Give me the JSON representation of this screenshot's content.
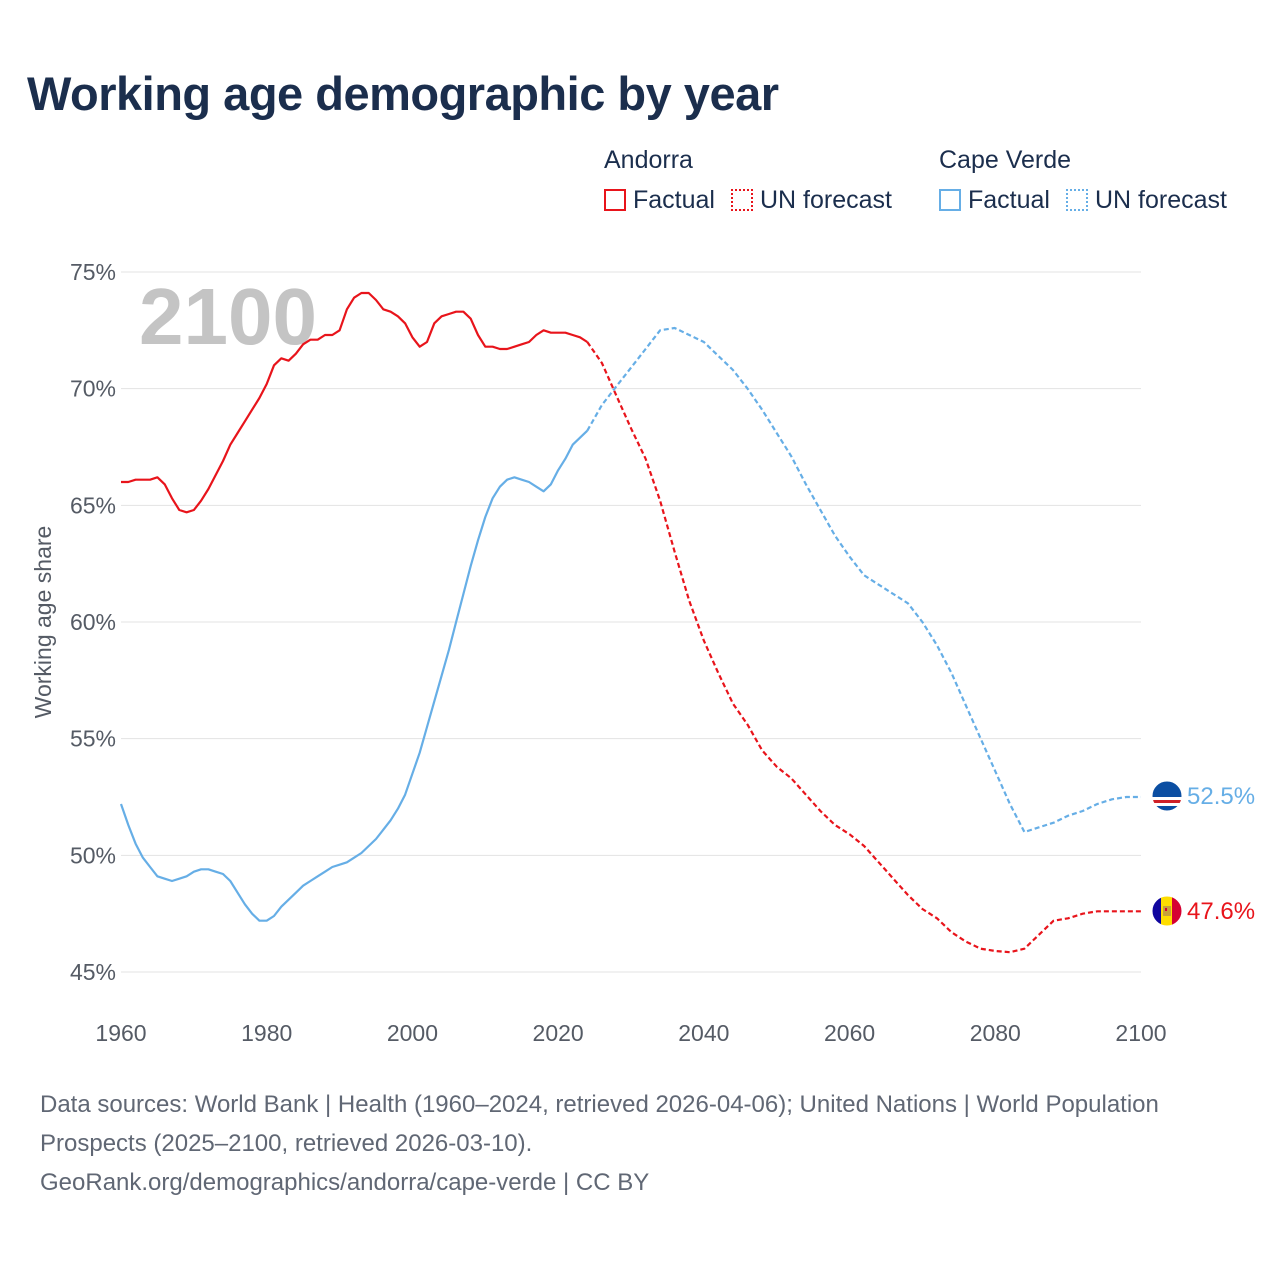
{
  "title": "Working age demographic by year",
  "legend": [
    {
      "country": "Andorra",
      "color": "#e8141b",
      "factual_label": "Factual",
      "forecast_label": "UN forecast"
    },
    {
      "country": "Cape Verde",
      "color": "#66aee6",
      "factual_label": "Factual",
      "forecast_label": "UN forecast"
    }
  ],
  "chart_data": {
    "type": "line",
    "title": "Working age demographic by year",
    "xlabel": "",
    "ylabel": "Working age share",
    "xlim": [
      1960,
      2100
    ],
    "ylim": [
      45,
      75
    ],
    "x_ticks": [
      1960,
      1980,
      2000,
      2020,
      2040,
      2060,
      2080,
      2100
    ],
    "y_ticks": [
      45,
      50,
      55,
      60,
      65,
      70,
      75
    ],
    "y_tick_labels": [
      "45%",
      "50%",
      "55%",
      "60%",
      "65%",
      "70%",
      "75%"
    ],
    "year_label": "2100",
    "factual_end": 2024,
    "series": [
      {
        "name": "Andorra",
        "color": "#e8141b",
        "end_label": "47.6%",
        "x": [
          1960,
          1961,
          1962,
          1963,
          1964,
          1965,
          1966,
          1967,
          1968,
          1969,
          1970,
          1971,
          1972,
          1973,
          1974,
          1975,
          1976,
          1977,
          1978,
          1979,
          1980,
          1981,
          1982,
          1983,
          1984,
          1985,
          1986,
          1987,
          1988,
          1989,
          1990,
          1991,
          1992,
          1993,
          1994,
          1995,
          1996,
          1997,
          1998,
          1999,
          2000,
          2001,
          2002,
          2003,
          2004,
          2005,
          2006,
          2007,
          2008,
          2009,
          2010,
          2011,
          2012,
          2013,
          2014,
          2015,
          2016,
          2017,
          2018,
          2019,
          2020,
          2021,
          2022,
          2023,
          2024,
          2026,
          2028,
          2030,
          2032,
          2034,
          2036,
          2038,
          2040,
          2042,
          2044,
          2046,
          2048,
          2050,
          2052,
          2054,
          2056,
          2058,
          2060,
          2062,
          2064,
          2066,
          2068,
          2070,
          2072,
          2074,
          2076,
          2078,
          2080,
          2082,
          2084,
          2086,
          2088,
          2090,
          2092,
          2094,
          2096,
          2098,
          2100
        ],
        "values": [
          66.0,
          66.0,
          66.1,
          66.1,
          66.1,
          66.2,
          65.9,
          65.3,
          64.8,
          64.7,
          64.8,
          65.2,
          65.7,
          66.3,
          66.9,
          67.6,
          68.1,
          68.6,
          69.1,
          69.6,
          70.2,
          71.0,
          71.3,
          71.2,
          71.5,
          71.9,
          72.1,
          72.1,
          72.3,
          72.3,
          72.5,
          73.4,
          73.9,
          74.1,
          74.1,
          73.8,
          73.4,
          73.3,
          73.1,
          72.8,
          72.2,
          71.8,
          72.0,
          72.8,
          73.1,
          73.2,
          73.3,
          73.3,
          73.0,
          72.3,
          71.8,
          71.8,
          71.7,
          71.7,
          71.8,
          71.9,
          72.0,
          72.3,
          72.5,
          72.4,
          72.4,
          72.4,
          72.3,
          72.2,
          72.0,
          71.1,
          69.7,
          68.3,
          67.0,
          65.2,
          63.0,
          60.9,
          59.2,
          57.8,
          56.5,
          55.6,
          54.5,
          53.8,
          53.3,
          52.6,
          51.9,
          51.3,
          50.9,
          50.4,
          49.7,
          49.0,
          48.3,
          47.7,
          47.3,
          46.7,
          46.3,
          46.0,
          45.9,
          45.85,
          46.0,
          46.6,
          47.2,
          47.3,
          47.5,
          47.6,
          47.6,
          47.6,
          47.6
        ]
      },
      {
        "name": "Cape Verde",
        "color": "#66aee6",
        "end_label": "52.5%",
        "x": [
          1960,
          1961,
          1962,
          1963,
          1964,
          1965,
          1966,
          1967,
          1968,
          1969,
          1970,
          1971,
          1972,
          1973,
          1974,
          1975,
          1976,
          1977,
          1978,
          1979,
          1980,
          1981,
          1982,
          1983,
          1984,
          1985,
          1986,
          1987,
          1988,
          1989,
          1990,
          1991,
          1992,
          1993,
          1994,
          1995,
          1996,
          1997,
          1998,
          1999,
          2000,
          2001,
          2002,
          2003,
          2004,
          2005,
          2006,
          2007,
          2008,
          2009,
          2010,
          2011,
          2012,
          2013,
          2014,
          2015,
          2016,
          2017,
          2018,
          2019,
          2020,
          2021,
          2022,
          2023,
          2024,
          2026,
          2028,
          2030,
          2032,
          2034,
          2036,
          2038,
          2040,
          2042,
          2044,
          2046,
          2048,
          2050,
          2052,
          2054,
          2056,
          2058,
          2060,
          2062,
          2064,
          2066,
          2068,
          2070,
          2072,
          2074,
          2076,
          2078,
          2080,
          2082,
          2084,
          2086,
          2088,
          2090,
          2092,
          2094,
          2096,
          2098,
          2100
        ],
        "values": [
          52.2,
          51.3,
          50.5,
          49.9,
          49.5,
          49.1,
          49.0,
          48.9,
          49.0,
          49.1,
          49.3,
          49.4,
          49.4,
          49.3,
          49.2,
          48.9,
          48.4,
          47.9,
          47.5,
          47.2,
          47.2,
          47.4,
          47.8,
          48.1,
          48.4,
          48.7,
          48.9,
          49.1,
          49.3,
          49.5,
          49.6,
          49.7,
          49.9,
          50.1,
          50.4,
          50.7,
          51.1,
          51.5,
          52.0,
          52.6,
          53.5,
          54.4,
          55.5,
          56.6,
          57.7,
          58.8,
          60.0,
          61.2,
          62.4,
          63.5,
          64.5,
          65.3,
          65.8,
          66.1,
          66.2,
          66.1,
          66.0,
          65.8,
          65.6,
          65.9,
          66.5,
          67.0,
          67.6,
          67.9,
          68.2,
          69.3,
          70.1,
          70.9,
          71.7,
          72.5,
          72.6,
          72.3,
          72.0,
          71.4,
          70.8,
          70.0,
          69.1,
          68.1,
          67.1,
          65.9,
          64.8,
          63.7,
          62.8,
          62.0,
          61.6,
          61.2,
          60.8,
          60.0,
          59.0,
          57.8,
          56.4,
          55.0,
          53.6,
          52.2,
          51.0,
          51.2,
          51.4,
          51.7,
          51.9,
          52.2,
          52.4,
          52.5,
          52.5
        ]
      }
    ]
  },
  "footer": {
    "sources": "Data sources: World Bank | Health (1960–2024, retrieved 2026-04-06); United Nations | World Population Prospects (2025–2100, retrieved 2026-03-10).",
    "credit": "GeoRank.org/demographics/andorra/cape-verde | CC BY"
  }
}
